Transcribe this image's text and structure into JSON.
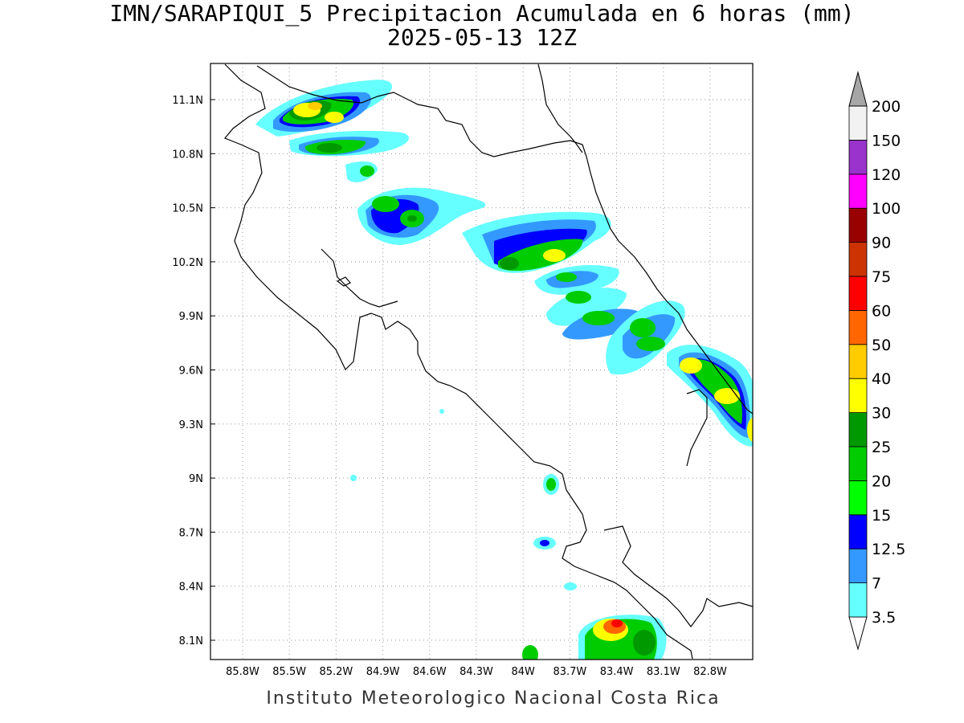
{
  "title": {
    "line1": "IMN/SARAPIQUI_5 Precipitacion Acumulada en 6 horas (mm)",
    "line2": "2025-05-13 12Z"
  },
  "map": {
    "lon_labels": [
      "85.8W",
      "85.5W",
      "85.2W",
      "84.9W",
      "84.6W",
      "84.3W",
      "84W",
      "83.7W",
      "83.4W",
      "83.1W",
      "82.8W"
    ],
    "lat_labels": [
      "11.1N",
      "10.8N",
      "10.5N",
      "10.2N",
      "9.9N",
      "9.6N",
      "9.3N",
      "9N",
      "8.7N",
      "8.4N",
      "8.1N"
    ],
    "grid": "dotted"
  },
  "colorbar": {
    "levels": [
      "3.5",
      "7",
      "12.5",
      "15",
      "20",
      "25",
      "30",
      "40",
      "50",
      "60",
      "75",
      "90",
      "100",
      "120",
      "150",
      "200"
    ],
    "colors": [
      "#66ffff",
      "#3399ff",
      "#0000ff",
      "#00ff00",
      "#00cc00",
      "#009900",
      "#ffff00",
      "#ffcc00",
      "#ff6600",
      "#ff0000",
      "#cc3300",
      "#990000",
      "#ff00ff",
      "#9933cc",
      "#f2f2f2",
      "#a6a6a6"
    ]
  },
  "footer": "Instituto Meteorologico Nacional Costa Rica"
}
